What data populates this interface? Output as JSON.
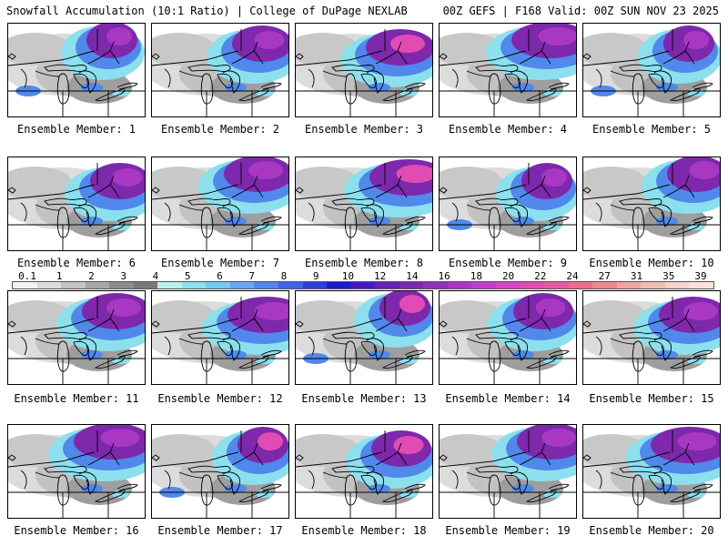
{
  "header": {
    "left": "Snowfall Accumulation (10:1 Ratio) | College of DuPage NEXLAB",
    "right": "00Z GEFS | F168 Valid: 00Z SUN NOV 23 2025"
  },
  "panels": [
    {
      "label": "Ensemble Member: 1"
    },
    {
      "label": "Ensemble Member: 2"
    },
    {
      "label": "Ensemble Member: 3"
    },
    {
      "label": "Ensemble Member: 4"
    },
    {
      "label": "Ensemble Member: 5"
    },
    {
      "label": "Ensemble Member: 6"
    },
    {
      "label": "Ensemble Member: 7"
    },
    {
      "label": "Ensemble Member: 8"
    },
    {
      "label": "Ensemble Member: 9"
    },
    {
      "label": "Ensemble Member: 10"
    },
    {
      "label": "Ensemble Member: 11"
    },
    {
      "label": "Ensemble Member: 12"
    },
    {
      "label": "Ensemble Member: 13"
    },
    {
      "label": "Ensemble Member: 14"
    },
    {
      "label": "Ensemble Member: 15"
    },
    {
      "label": "Ensemble Member: 16"
    },
    {
      "label": "Ensemble Member: 17"
    },
    {
      "label": "Ensemble Member: 18"
    },
    {
      "label": "Ensemble Member: 19"
    },
    {
      "label": "Ensemble Member: 20"
    }
  ],
  "colorbar": {
    "labels": [
      "0.1",
      "1",
      "2",
      "3",
      "4",
      "5",
      "6",
      "7",
      "8",
      "9",
      "10",
      "12",
      "14",
      "16",
      "18",
      "20",
      "22",
      "24",
      "27",
      "31",
      "35",
      "39"
    ],
    "colors": [
      "#f4f4f4",
      "#dddddd",
      "#c4c4c4",
      "#a8a8a8",
      "#8c8c8c",
      "#7a7a7a",
      "#b8f0f0",
      "#8ce0ee",
      "#78c8f4",
      "#64a8f0",
      "#5088ec",
      "#3c64e4",
      "#2840d8",
      "#1c1ccc",
      "#4a18c0",
      "#6a20b4",
      "#7e28ac",
      "#9230b8",
      "#a838c4",
      "#be40cc",
      "#d448c8",
      "#e04cb4",
      "#e45ca0",
      "#e8708c",
      "#ec8a8a",
      "#f0a4a0",
      "#f4bcb4",
      "#f6d2c8",
      "#f8e4dc"
    ]
  }
}
